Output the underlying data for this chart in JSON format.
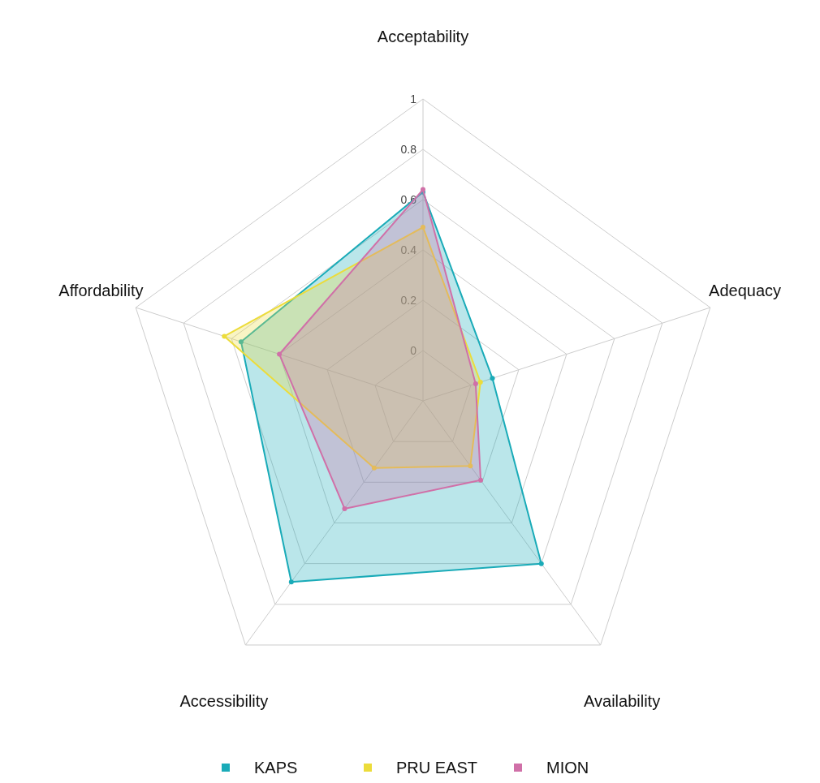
{
  "chart_data": {
    "type": "radar",
    "categories": [
      "Acceptability",
      "Adequacy",
      "Availability",
      "Accessibility",
      "Affordability"
    ],
    "ylim": [
      -0.2,
      1
    ],
    "yticks": [
      0,
      0.2,
      0.4,
      0.6,
      0.8,
      1
    ],
    "grid": true,
    "legend": "bottom",
    "marker": "circle",
    "series": [
      {
        "name": "KAPS",
        "color": "#1aabb8",
        "values": [
          0.63,
          0.09,
          0.6,
          0.69,
          0.56
        ]
      },
      {
        "name": "PRU EAST",
        "color": "#ecdc3a",
        "values": [
          0.49,
          0.04,
          0.12,
          0.13,
          0.63
        ]
      },
      {
        "name": "MION",
        "color": "#d070a8",
        "values": [
          0.64,
          0.02,
          0.19,
          0.33,
          0.4
        ]
      }
    ]
  }
}
